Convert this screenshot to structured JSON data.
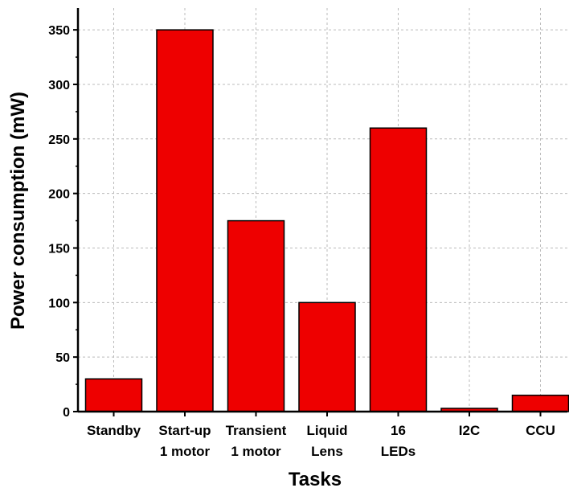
{
  "chart_data": {
    "type": "bar",
    "title": "",
    "xlabel": "Tasks",
    "ylabel": "Power consumption (mW)",
    "ylim": [
      0,
      370
    ],
    "yticks": [
      0,
      50,
      100,
      150,
      200,
      250,
      300,
      350
    ],
    "grid": true,
    "categories": [
      [
        "Standby"
      ],
      [
        "Start-up",
        "1 motor"
      ],
      [
        "Transient",
        "1 motor"
      ],
      [
        "Liquid",
        "Lens"
      ],
      [
        "16",
        "LEDs"
      ],
      [
        "I2C"
      ],
      [
        "CCU"
      ]
    ],
    "values": [
      30,
      350,
      175,
      100,
      260,
      3,
      15
    ],
    "colors": {
      "bar_fill": "#ee0000",
      "bar_stroke": "#000000",
      "grid": "#bbbbbb",
      "axis": "#000000"
    }
  }
}
